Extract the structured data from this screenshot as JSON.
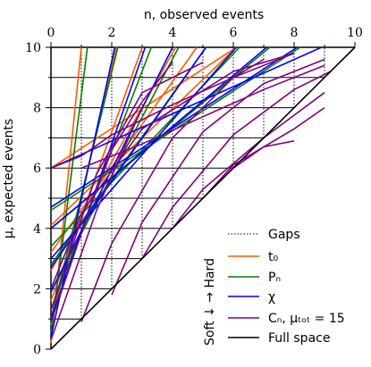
{
  "chart_data": {
    "type": "line",
    "xlabel": "n, observed events",
    "ylabel": "μ, expected events",
    "xlim": [
      0,
      10
    ],
    "ylim": [
      0,
      10
    ],
    "xticks": [
      "0",
      "2",
      "4",
      "6",
      "8",
      "10"
    ],
    "yticks": [
      "0",
      "2",
      "4",
      "6",
      "8",
      "10"
    ],
    "side_label": "Soft ↓ → Hard",
    "legend_position": "lower-right",
    "legend": [
      {
        "label": "Gaps",
        "color": "#000000",
        "style": "dotted"
      },
      {
        "label": "t₀",
        "color": "#ff5a00",
        "style": "solid"
      },
      {
        "label": "Pₙ",
        "color": "#008000",
        "style": "solid"
      },
      {
        "label": "χ",
        "color": "#0000ff",
        "style": "solid"
      },
      {
        "label": "Cₙ, μₜₒₜ = 15",
        "color": "#800080",
        "style": "solid"
      },
      {
        "label": "Full space",
        "color": "#000000",
        "style": "solid"
      }
    ],
    "gaps": [
      {
        "x": 1,
        "y_range": [
          1,
          10
        ]
      },
      {
        "x": 2,
        "y_range": [
          2,
          10
        ]
      },
      {
        "x": 3,
        "y_range": [
          3,
          10
        ]
      },
      {
        "x": 4,
        "y_range": [
          4,
          10
        ]
      },
      {
        "x": 5,
        "y_range": [
          5,
          10
        ]
      },
      {
        "x": 6,
        "y_range": [
          6,
          10
        ]
      },
      {
        "x": 7,
        "y_range": [
          7,
          10
        ]
      },
      {
        "x": 8,
        "y_range": [
          8,
          10
        ]
      },
      {
        "x": 9,
        "y_range": [
          9,
          10
        ]
      }
    ],
    "full_space_hlines": [
      1,
      2,
      3,
      4,
      5,
      6,
      7,
      8,
      9
    ],
    "series": [
      {
        "color": "#ff5a00",
        "lines": [
          [
            [
              0,
              0.2
            ],
            [
              1,
              10
            ]
          ],
          [
            [
              0,
              0.8
            ],
            [
              2.15,
              10
            ]
          ],
          [
            [
              0,
              1.6
            ],
            [
              3,
              10
            ]
          ],
          [
            [
              0,
              2.6
            ],
            [
              4.1,
              10
            ]
          ],
          [
            [
              0,
              3.2
            ],
            [
              4.8,
              10
            ]
          ],
          [
            [
              0,
              4.1
            ],
            [
              6.1,
              10
            ]
          ],
          [
            [
              0,
              6.0
            ],
            [
              6.1,
              10
            ]
          ]
        ]
      },
      {
        "color": "#008000",
        "lines": [
          [
            [
              0,
              0.5
            ],
            [
              1.2,
              10
            ]
          ],
          [
            [
              0,
              1.0
            ],
            [
              2.2,
              10
            ]
          ],
          [
            [
              0,
              1.3
            ],
            [
              3.3,
              10
            ]
          ],
          [
            [
              0,
              1.9
            ],
            [
              4.2,
              10
            ]
          ],
          [
            [
              0,
              2.8
            ],
            [
              5.1,
              10
            ]
          ],
          [
            [
              0,
              3.4
            ],
            [
              6.2,
              10
            ]
          ],
          [
            [
              0,
              4.0
            ],
            [
              7.2,
              10
            ]
          ],
          [
            [
              0,
              4.6
            ],
            [
              8.2,
              10
            ]
          ]
        ]
      },
      {
        "color": "#0000ff",
        "lines": [
          [
            [
              0,
              0.4
            ],
            [
              2.1,
              10
            ]
          ],
          [
            [
              0,
              1.0
            ],
            [
              3.1,
              10
            ]
          ],
          [
            [
              0,
              1.9
            ],
            [
              4.0,
              10
            ]
          ],
          [
            [
              0,
              2.7
            ],
            [
              5.1,
              10
            ]
          ],
          [
            [
              0,
              3.0
            ],
            [
              6.1,
              10
            ]
          ],
          [
            [
              0,
              4.0
            ],
            [
              7.1,
              10
            ]
          ],
          [
            [
              0,
              4.7
            ],
            [
              8.1,
              10
            ]
          ],
          [
            [
              0,
              6.0
            ],
            [
              8.9,
              10
            ]
          ]
        ]
      },
      {
        "color": "#800080",
        "lines": [
          [
            [
              0,
              0.3
            ],
            [
              1.5,
              4.6
            ],
            [
              3,
              8.0
            ]
          ],
          [
            [
              0,
              0.9
            ],
            [
              1.5,
              5.3
            ],
            [
              2,
              6.6
            ],
            [
              3,
              8.2
            ],
            [
              4,
              9.5
            ]
          ],
          [
            [
              0,
              1.3
            ],
            [
              1.5,
              5.8
            ],
            [
              3,
              8.5
            ],
            [
              5,
              9.5
            ]
          ],
          [
            [
              1,
              0.9
            ],
            [
              2,
              3.5
            ],
            [
              4,
              7.0
            ],
            [
              6,
              9.0
            ],
            [
              7,
              9.6
            ]
          ],
          [
            [
              0,
              2.0
            ],
            [
              1,
              4.5
            ],
            [
              3,
              7.3
            ],
            [
              6,
              9.2
            ],
            [
              8,
              9.8
            ]
          ],
          [
            [
              2,
              1.8
            ],
            [
              3,
              4.2
            ],
            [
              5,
              7.2
            ],
            [
              7,
              8.8
            ],
            [
              9,
              9.6
            ]
          ],
          [
            [
              3,
              3.0
            ],
            [
              4,
              4.7
            ],
            [
              6,
              7.1
            ],
            [
              8,
              8.6
            ],
            [
              9.2,
              9.2
            ]
          ],
          [
            [
              4,
              4.0
            ],
            [
              5,
              5.3
            ],
            [
              7,
              7.0
            ],
            [
              9,
              8.5
            ]
          ],
          [
            [
              5,
              5.0
            ],
            [
              6,
              6.1
            ],
            [
              8,
              7.3
            ],
            [
              9,
              8.0
            ]
          ],
          [
            [
              6,
              6.0
            ],
            [
              7,
              6.7
            ],
            [
              8,
              6.9
            ]
          ],
          [
            [
              0,
              6.0
            ],
            [
              1,
              6.4
            ],
            [
              2,
              7.1
            ],
            [
              4,
              8.1
            ],
            [
              6,
              9.0
            ],
            [
              8,
              9.8
            ]
          ],
          [
            [
              1,
              6.0
            ],
            [
              3,
              6.8
            ],
            [
              5,
              7.7
            ],
            [
              7,
              8.6
            ],
            [
              9,
              9.4
            ]
          ]
        ]
      },
      {
        "color": "#000000",
        "lines": [
          [
            [
              0,
              0
            ],
            [
              10,
              10
            ]
          ]
        ]
      }
    ]
  }
}
